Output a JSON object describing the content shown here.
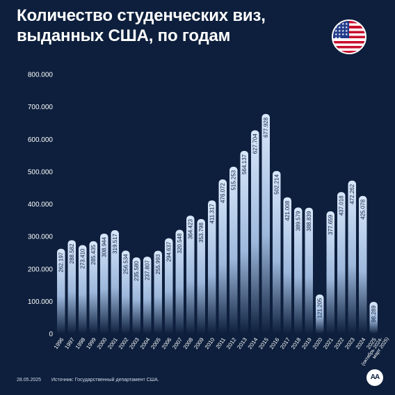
{
  "title": "Количество студенческих виз, выданных США, по годам",
  "date": "28.05.2025",
  "source": "Источник: Государственный департамент США.",
  "logo_text": "AA",
  "flag_icon": "us-flag-icon",
  "colors": {
    "background": "#0d1f3c",
    "bar_top": "#d9e8fb",
    "bar_bottom": "#0d1f3c",
    "text": "#ffffff"
  },
  "chart_data": {
    "type": "bar",
    "categories": [
      "1996",
      "1997",
      "1998",
      "1999",
      "2000",
      "2001",
      "2002",
      "2003",
      "2004",
      "2005",
      "2006",
      "2007",
      "2008",
      "2009",
      "2010",
      "2011",
      "2012",
      "2013",
      "2014",
      "2015",
      "2016",
      "2017",
      "2018",
      "2019",
      "2020",
      "2021",
      "2022",
      "2023",
      "2024",
      "2025 (октябрь 2024-март 2025)"
    ],
    "values": [
      262197,
      288582,
      273410,
      285435,
      308944,
      319517,
      256534,
      235580,
      237807,
      255993,
      294637,
      320548,
      364423,
      353798,
      411317,
      476072,
      515253,
      564137,
      627704,
      677928,
      502214,
      421008,
      389579,
      388839,
      121205,
      377659,
      437018,
      472262,
      425078,
      98289
    ],
    "value_labels": [
      "262.197",
      "288.582",
      "273.410",
      "285.435",
      "308.944",
      "319.517",
      "256.534",
      "235.580",
      "237.807",
      "255.993",
      "294.637",
      "320.548",
      "364.423",
      "353.798",
      "411.317",
      "476.072",
      "515.253",
      "564.137",
      "627.704",
      "677.928",
      "502.214",
      "421.008",
      "389.579",
      "388.839",
      "121.205",
      "377.659",
      "437.018",
      "472.262",
      "425.078",
      "98.289"
    ],
    "x_tick_labels": [
      "1996",
      "1997",
      "1998",
      "1999",
      "2000",
      "2001",
      "2002",
      "2003",
      "2004",
      "2005",
      "2006",
      "2007",
      "2008",
      "2009",
      "2010",
      "2011",
      "2012",
      "2013",
      "2014",
      "2015",
      "2016",
      "2017",
      "2018",
      "2019",
      "2020",
      "2021",
      "2022",
      "2023",
      "2024",
      "2025"
    ],
    "last_tick_note": [
      "(октябрь 2024-",
      "март 2025)"
    ],
    "y_ticks": [
      0,
      100000,
      200000,
      300000,
      400000,
      500000,
      600000,
      700000,
      800000
    ],
    "y_tick_labels": [
      "0",
      "100.000",
      "200.000",
      "300.000",
      "400.000",
      "500.000",
      "600.000",
      "700.000",
      "800.000"
    ],
    "ylim": [
      0,
      800000
    ],
    "grid": false,
    "legend": "none"
  }
}
